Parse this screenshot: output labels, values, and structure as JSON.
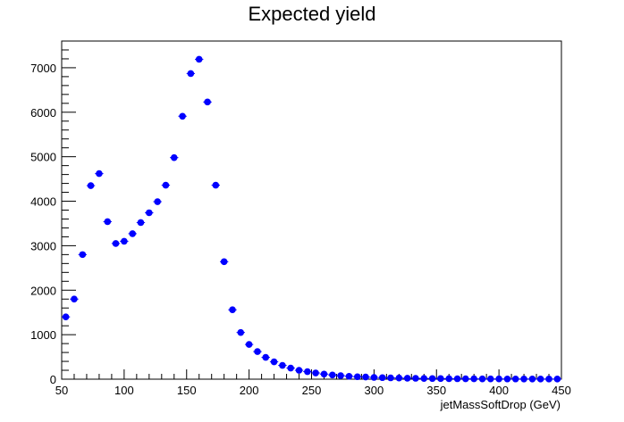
{
  "chart_data": {
    "type": "scatter",
    "title": "Expected yield",
    "xlabel": "jetMassSoftDrop (GeV)",
    "ylabel": "",
    "xlim": [
      50,
      450
    ],
    "ylim": [
      0,
      7600
    ],
    "x_ticks": [
      50,
      100,
      150,
      200,
      250,
      300,
      350,
      400,
      450
    ],
    "y_ticks": [
      0,
      1000,
      2000,
      3000,
      4000,
      5000,
      6000,
      7000
    ],
    "grid": false,
    "marker_color": "#0000ff",
    "bin_width": 6.7,
    "series": [
      {
        "x": [
          53.3,
          60.0,
          66.7,
          73.3,
          80.0,
          86.7,
          93.3,
          100.0,
          106.7,
          113.3,
          120.0,
          126.7,
          133.3,
          140.0,
          146.7,
          153.3,
          160.0,
          166.7,
          173.3,
          180.0,
          186.7,
          193.3,
          200.0,
          206.7,
          213.3,
          220.0,
          226.7,
          233.3,
          240.0,
          246.7,
          253.3,
          260.0,
          266.7,
          273.3,
          280.0,
          286.7,
          293.3,
          300.0,
          306.7,
          313.3,
          320.0,
          326.7,
          333.3,
          340.0,
          346.7,
          353.3,
          360.0,
          366.7,
          373.3,
          380.0,
          386.7,
          393.3,
          400.0,
          406.7,
          413.3,
          420.0,
          426.7,
          433.3,
          440.0,
          446.7
        ],
        "y": [
          1400,
          1800,
          2800,
          4350,
          4620,
          3540,
          3050,
          3100,
          3270,
          3520,
          3740,
          3990,
          4360,
          4980,
          5910,
          6870,
          7190,
          6230,
          4360,
          2640,
          1560,
          1050,
          780,
          620,
          490,
          390,
          310,
          250,
          200,
          170,
          140,
          115,
          95,
          80,
          65,
          55,
          48,
          40,
          35,
          30,
          26,
          22,
          20,
          17,
          15,
          13,
          12,
          10,
          9,
          8,
          7,
          6,
          6,
          5,
          5,
          4,
          4,
          3,
          3,
          3
        ]
      }
    ]
  }
}
